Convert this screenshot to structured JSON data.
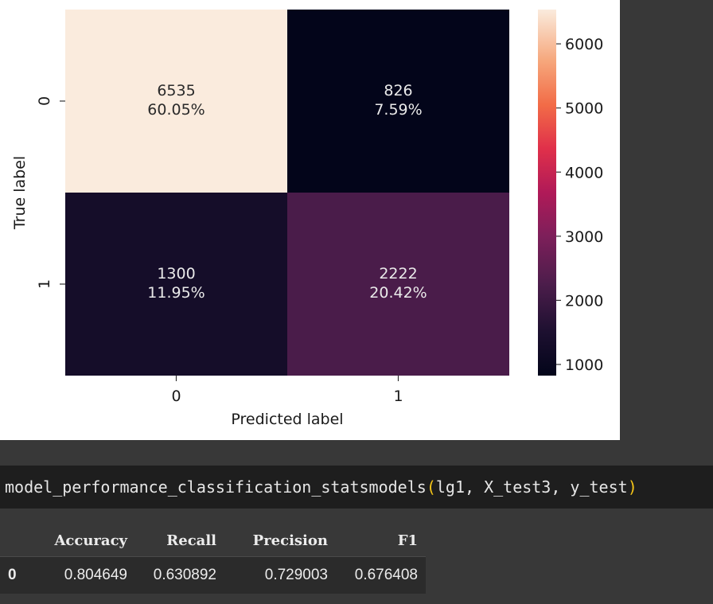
{
  "chart_data": {
    "type": "heatmap",
    "xlabel": "Predicted label",
    "ylabel": "True label",
    "x_tick_labels": [
      "0",
      "1"
    ],
    "y_tick_labels": [
      "0",
      "1"
    ],
    "cells": [
      {
        "row": 0,
        "col": 0,
        "count": "6535",
        "pct": "60.05%",
        "value": 6535,
        "text_color": "#2a2a2a"
      },
      {
        "row": 0,
        "col": 1,
        "count": "826",
        "pct": "7.59%",
        "value": 826,
        "text_color": "#eaeaea"
      },
      {
        "row": 1,
        "col": 0,
        "count": "1300",
        "pct": "11.95%",
        "value": 1300,
        "text_color": "#eaeaea"
      },
      {
        "row": 1,
        "col": 1,
        "count": "2222",
        "pct": "20.42%",
        "value": 2222,
        "text_color": "#eaeaea"
      }
    ],
    "colorbar": {
      "ticks": [
        "1000",
        "2000",
        "3000",
        "4000",
        "5000",
        "6000"
      ],
      "tick_values": [
        1000,
        2000,
        3000,
        4000,
        5000,
        6000
      ],
      "range": [
        826,
        6535
      ],
      "colormap": "rocket"
    }
  },
  "code": {
    "func": "model_performance_classification_statsmodels",
    "open_paren": "(",
    "args": "lg1, X_test3, y_test",
    "close_paren": ")"
  },
  "table": {
    "headers": [
      "",
      "Accuracy",
      "Recall",
      "Precision",
      "F1"
    ],
    "rows": [
      [
        "0",
        "0.804649",
        "0.630892",
        "0.729003",
        "0.676408"
      ]
    ]
  }
}
